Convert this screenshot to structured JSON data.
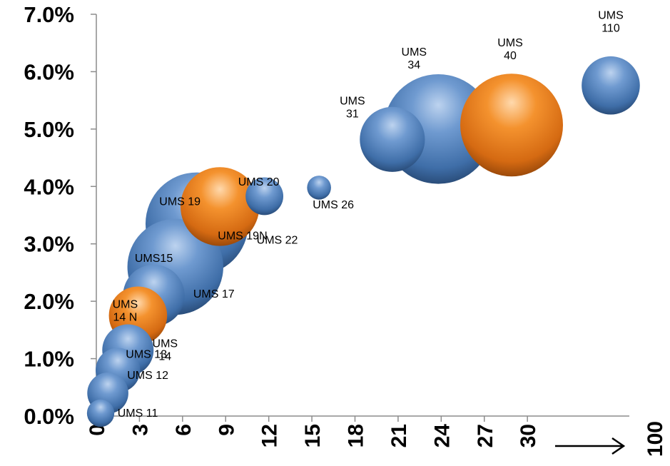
{
  "chart_data": {
    "type": "bubble",
    "title": "",
    "xlabel": "",
    "ylabel": "",
    "xlim": [
      0,
      36
    ],
    "ylim": [
      0,
      0.07
    ],
    "y_ticks": [
      "0.0%",
      "1.0%",
      "2.0%",
      "3.0%",
      "4.0%",
      "5.0%",
      "6.0%",
      "7.0%"
    ],
    "x_ticks": [
      "0",
      "3",
      "6",
      "9",
      "12",
      "15",
      "18",
      "21",
      "24",
      "27",
      "30"
    ],
    "x_axis_end_label": "100",
    "grid": false,
    "legend": "none",
    "colors": {
      "blue": "#4f81bd",
      "orange": "#f79646"
    },
    "bubbles": [
      {
        "label_lines": [
          "UMS 11"
        ],
        "x": 0.3,
        "y": 0.0005,
        "size": 0.8,
        "color": "blue"
      },
      {
        "label_lines": [
          "UMS 12"
        ],
        "x": 0.8,
        "y": 0.004,
        "size": 1.2,
        "color": "blue"
      },
      {
        "label_lines": [
          "UMS 13"
        ],
        "x": 1.5,
        "y": 0.008,
        "size": 1.3,
        "color": "blue"
      },
      {
        "label_lines": [
          "UMS",
          "14"
        ],
        "x": 2.2,
        "y": 0.0115,
        "size": 1.5,
        "color": "blue"
      },
      {
        "label_lines": [
          "UMS",
          "14 N"
        ],
        "x": 2.9,
        "y": 0.0175,
        "size": 1.7,
        "color": "orange"
      },
      {
        "label_lines": [
          "UMS15"
        ],
        "x": 4.0,
        "y": 0.021,
        "size": 1.8,
        "color": "blue"
      },
      {
        "label_lines": [
          "UMS 17"
        ],
        "x": 5.5,
        "y": 0.026,
        "size": 2.8,
        "color": "blue"
      },
      {
        "label_lines": [
          "UMS 19N"
        ],
        "x": 7.0,
        "y": 0.0335,
        "size": 3.0,
        "color": "blue"
      },
      {
        "label_lines": [
          "UMS 19"
        ],
        "x": 8.6,
        "y": 0.0365,
        "size": 2.3,
        "color": "orange"
      },
      {
        "label_lines": [
          "UMS 20"
        ],
        "x": 11.7,
        "y": 0.0383,
        "size": 1.1,
        "color": "blue"
      },
      {
        "label_lines": [
          "UMS 22"
        ],
        "x": 11.2,
        "y": 0.0365,
        "size": 0.0,
        "color": "blue"
      },
      {
        "label_lines": [
          "UMS 26"
        ],
        "x": 15.5,
        "y": 0.0398,
        "size": 0.7,
        "color": "blue"
      },
      {
        "label_lines": [
          "UMS",
          "31"
        ],
        "x": 20.6,
        "y": 0.0482,
        "size": 1.9,
        "color": "blue"
      },
      {
        "label_lines": [
          "UMS",
          "34"
        ],
        "x": 23.8,
        "y": 0.05,
        "size": 3.2,
        "color": "blue"
      },
      {
        "label_lines": [
          "UMS",
          "40"
        ],
        "x": 28.9,
        "y": 0.0507,
        "size": 3.0,
        "color": "orange"
      },
      {
        "label_lines": [
          "UMS",
          "110"
        ],
        "x": 35.8,
        "y": 0.0576,
        "size": 1.7,
        "color": "blue"
      }
    ]
  }
}
